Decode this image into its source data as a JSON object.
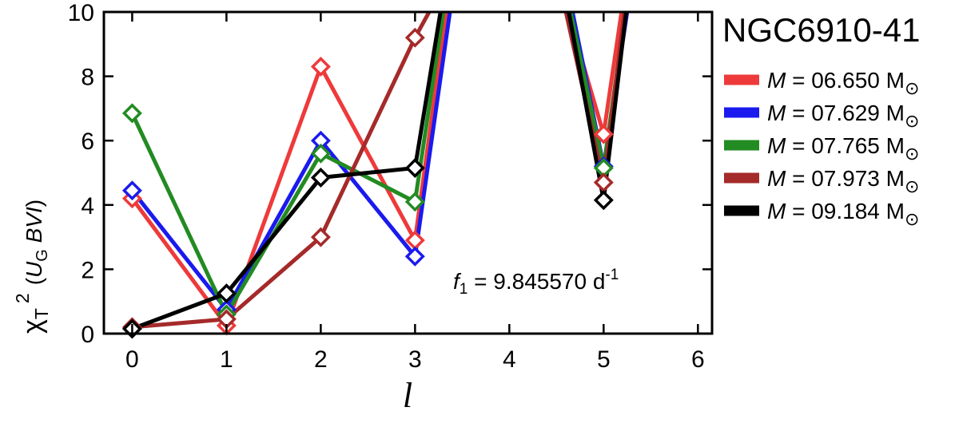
{
  "chart_data": {
    "type": "line",
    "title": "NGC6910-41",
    "xlabel": "l",
    "ylabel": {
      "chi": "χ",
      "sub_T": "T",
      "sup_2": "2",
      "open": "(",
      "U": "U",
      "sub_G": "G",
      "bands": " BVI",
      "close": ")"
    },
    "annotation": {
      "f": "f",
      "sub": "1",
      "text": " = 9.845570 d",
      "sup": "-1"
    },
    "xlim": [
      -0.3,
      6.15
    ],
    "ylim": [
      0,
      10
    ],
    "xticks": [
      "0",
      "1",
      "2",
      "3",
      "4",
      "5",
      "6"
    ],
    "yticks": [
      "0",
      "2",
      "4",
      "6",
      "8",
      "10"
    ],
    "legend_position": "right",
    "marker": "diamond-open",
    "series": [
      {
        "label_M": "M",
        "label_text": " = 06.650 M",
        "label_sun": "⊙",
        "color": "#ee3a3a",
        "segments": [
          [
            [
              0,
              4.2
            ],
            [
              1,
              0.25
            ],
            [
              2,
              8.3
            ],
            [
              3,
              2.9
            ],
            [
              3.33,
              10
            ]
          ],
          [
            [
              4.62,
              10
            ],
            [
              5,
              6.2
            ],
            [
              5.19,
              10
            ]
          ]
        ],
        "points": [
          [
            0,
            4.2
          ],
          [
            1,
            0.25
          ],
          [
            2,
            8.3
          ],
          [
            3,
            2.9
          ],
          [
            5,
            6.2
          ]
        ]
      },
      {
        "label_M": "M",
        "label_text": " = 07.629 M",
        "label_sun": "⊙",
        "color": "#1a1aee",
        "segments": [
          [
            [
              0,
              4.45
            ],
            [
              1,
              0.75
            ],
            [
              2,
              6.0
            ],
            [
              3,
              2.4
            ],
            [
              3.37,
              10
            ]
          ],
          [
            [
              4.67,
              10
            ],
            [
              5,
              5.2
            ],
            [
              5.25,
              10
            ]
          ]
        ],
        "points": [
          [
            0,
            4.45
          ],
          [
            1,
            0.75
          ],
          [
            2,
            6.0
          ],
          [
            3,
            2.4
          ],
          [
            5,
            5.2
          ]
        ]
      },
      {
        "label_M": "M",
        "label_text": " = 07.765 M",
        "label_sun": "⊙",
        "color": "#228b22",
        "segments": [
          [
            [
              0,
              6.85
            ],
            [
              1,
              0.6
            ],
            [
              2,
              5.6
            ],
            [
              3,
              4.1
            ],
            [
              3.3,
              10
            ]
          ],
          [
            [
              4.65,
              10
            ],
            [
              5,
              5.15
            ],
            [
              5.23,
              10
            ]
          ]
        ],
        "points": [
          [
            0,
            6.85
          ],
          [
            1,
            0.6
          ],
          [
            2,
            5.6
          ],
          [
            3,
            4.1
          ],
          [
            5,
            5.15
          ]
        ]
      },
      {
        "label_M": "M",
        "label_text": " = 07.973 M",
        "label_sun": "⊙",
        "color": "#a52a2a",
        "segments": [
          [
            [
              0,
              0.2
            ],
            [
              1,
              0.45
            ],
            [
              2,
              3.0
            ],
            [
              3,
              9.2
            ],
            [
              3.15,
              10
            ]
          ],
          [
            [
              4.6,
              10
            ],
            [
              5,
              4.7
            ],
            [
              5.22,
              10
            ]
          ]
        ],
        "points": [
          [
            0,
            0.2
          ],
          [
            1,
            0.45
          ],
          [
            2,
            3.0
          ],
          [
            3,
            9.2
          ],
          [
            5,
            4.7
          ]
        ]
      },
      {
        "label_M": "M",
        "label_text": " = 09.184 M",
        "label_sun": "⊙",
        "color": "#000000",
        "segments": [
          [
            [
              0,
              0.15
            ],
            [
              1,
              1.25
            ],
            [
              2,
              4.85
            ],
            [
              3,
              5.15
            ],
            [
              3.27,
              10
            ]
          ],
          [
            [
              4.63,
              10
            ],
            [
              5,
              4.15
            ],
            [
              5.24,
              10
            ]
          ]
        ],
        "points": [
          [
            0,
            0.15
          ],
          [
            1,
            1.25
          ],
          [
            2,
            4.85
          ],
          [
            3,
            5.15
          ],
          [
            5,
            4.15
          ]
        ]
      }
    ]
  }
}
